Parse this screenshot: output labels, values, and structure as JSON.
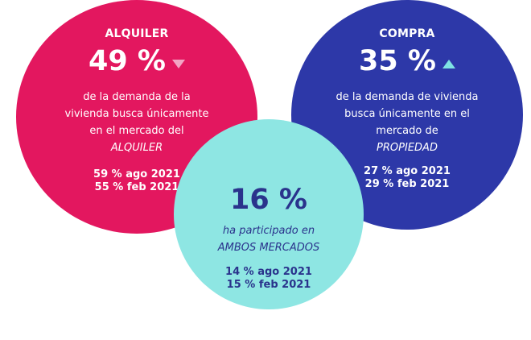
{
  "colors": {
    "alquiler_bg": "#e3175f",
    "compra_bg": "#2d38a8",
    "ambos_bg": "#8ee6e3",
    "ambos_text": "#2a338c",
    "down_arrow": "#f2a5c4",
    "up_arrow": "#7fe3e3"
  },
  "icons": {
    "alquiler_trend": "triangle-down-icon",
    "compra_trend": "triangle-up-icon"
  },
  "alquiler": {
    "label": "ALQUILER",
    "value": "49 %",
    "desc_line1": "de la demanda de la",
    "desc_line2": "vivienda busca únicamente",
    "desc_line3": "en el mercado del",
    "desc_line4": "ALQUILER",
    "hist1": "59 % ago 2021",
    "hist2": "55 % feb 2021"
  },
  "compra": {
    "label": "COMPRA",
    "value": "35 %",
    "desc_line1": "de la demanda de vivienda",
    "desc_line2": "busca únicamente en el",
    "desc_line3": "mercado de",
    "desc_line4": "PROPIEDAD",
    "hist1": "27 % ago 2021",
    "hist2": "29 % feb 2021"
  },
  "ambos": {
    "value": "16 %",
    "desc_line1": "ha participado en",
    "desc_line2": "AMBOS MERCADOS",
    "hist1": "14 % ago 2021",
    "hist2": "15 % feb 2021"
  }
}
